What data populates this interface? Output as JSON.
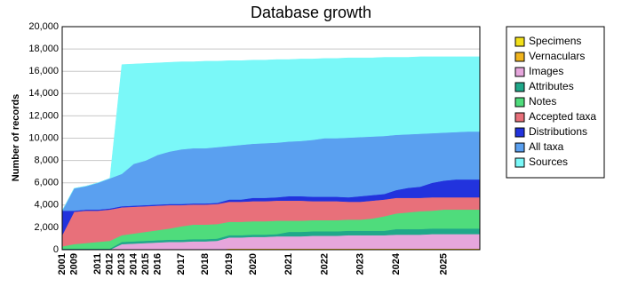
{
  "chart_data": {
    "type": "stacked_area",
    "title": "Database growth",
    "y_label": "Number of records",
    "categories": [
      "2001",
      "2009",
      null,
      "2011",
      "2012",
      "2013",
      "2014",
      "2015",
      "2016",
      null,
      "2017",
      null,
      "2018",
      null,
      "2019",
      null,
      "2020",
      null,
      null,
      "2021",
      null,
      null,
      "2022",
      null,
      null,
      "2023",
      null,
      null,
      "2024",
      null,
      null,
      null,
      "2025",
      null,
      null,
      null
    ],
    "ylim": [
      0,
      20000
    ],
    "yticks": [
      0,
      {
        "value": 2000,
        "label": "2,000"
      },
      {
        "value": 4000,
        "label": "4,000"
      },
      {
        "value": 6000,
        "label": "6,000"
      },
      {
        "value": 8000,
        "label": "8,000"
      },
      {
        "value": 10000,
        "label": "10,000"
      },
      {
        "value": 12000,
        "label": "12,000"
      },
      {
        "value": 14000,
        "label": "14,000"
      },
      {
        "value": 16000,
        "label": "16,000"
      },
      {
        "value": 18000,
        "label": "18,000"
      },
      {
        "value": 20000,
        "label": "20,000"
      }
    ],
    "grid": true,
    "legend": "right",
    "series": [
      {
        "name": "Specimens",
        "color": "#f2e01a",
        "values": [
          0,
          0,
          0,
          0,
          0,
          0,
          0,
          0,
          0,
          0,
          0,
          0,
          0,
          0,
          30,
          30,
          30,
          30,
          30,
          30,
          30,
          30,
          30,
          30,
          30,
          30,
          30,
          30,
          30,
          30,
          30,
          30,
          30,
          30,
          30,
          30
        ]
      },
      {
        "name": "Vernaculars",
        "color": "#f0b41e",
        "values": [
          0,
          0,
          0,
          0,
          0,
          0,
          0,
          0,
          0,
          0,
          0,
          0,
          0,
          0,
          70,
          70,
          70,
          70,
          70,
          70,
          70,
          70,
          70,
          70,
          70,
          70,
          70,
          70,
          70,
          70,
          70,
          70,
          70,
          70,
          70,
          70
        ]
      },
      {
        "name": "Images",
        "color": "#e6a6dc",
        "values": [
          0,
          0,
          0,
          0,
          0,
          500,
          550,
          600,
          650,
          700,
          700,
          750,
          750,
          800,
          1000,
          1000,
          1050,
          1050,
          1100,
          1100,
          1100,
          1150,
          1150,
          1150,
          1200,
          1200,
          1200,
          1200,
          1250,
          1250,
          1250,
          1300,
          1300,
          1300,
          1300,
          1300
        ]
      },
      {
        "name": "Attributes",
        "color": "#20a88a",
        "values": [
          100,
          100,
          100,
          100,
          100,
          200,
          200,
          200,
          200,
          200,
          200,
          200,
          200,
          200,
          200,
          200,
          200,
          200,
          200,
          400,
          400,
          400,
          400,
          400,
          400,
          400,
          400,
          400,
          500,
          500,
          500,
          500,
          500,
          500,
          500,
          500
        ]
      },
      {
        "name": "Notes",
        "color": "#4fdc7c",
        "values": [
          200,
          400,
          500,
          600,
          700,
          600,
          700,
          800,
          900,
          1000,
          1200,
          1300,
          1300,
          1300,
          1200,
          1200,
          1200,
          1200,
          1200,
          1000,
          1000,
          1000,
          1000,
          1000,
          1000,
          1000,
          1100,
          1300,
          1400,
          1500,
          1600,
          1600,
          1700,
          1700,
          1700,
          1700
        ]
      },
      {
        "name": "Accepted taxa",
        "color": "#e8707a",
        "values": [
          1000,
          2900,
          2900,
          2800,
          2800,
          2500,
          2400,
          2300,
          2200,
          2100,
          1900,
          1800,
          1800,
          1800,
          1800,
          1800,
          1800,
          1800,
          1800,
          1800,
          1800,
          1700,
          1700,
          1700,
          1600,
          1600,
          1600,
          1500,
          1400,
          1300,
          1200,
          1200,
          1100,
          1100,
          1100,
          1100
        ]
      },
      {
        "name": "Distributions",
        "color": "#2233dd",
        "values": [
          2200,
          100,
          100,
          100,
          100,
          100,
          100,
          100,
          100,
          100,
          100,
          100,
          100,
          100,
          200,
          200,
          300,
          300,
          300,
          400,
          400,
          400,
          400,
          400,
          400,
          500,
          500,
          500,
          700,
          900,
          1000,
          1300,
          1500,
          1600,
          1600,
          1600
        ]
      },
      {
        "name": "All taxa",
        "color": "#5aa0f0",
        "values": [
          0,
          2000,
          2100,
          2400,
          2700,
          2900,
          3750,
          4000,
          4450,
          4700,
          4900,
          4950,
          4950,
          5000,
          4800,
          4900,
          4850,
          4900,
          4900,
          4900,
          4950,
          5100,
          5250,
          5250,
          5350,
          5300,
          5250,
          5200,
          4950,
          4800,
          4750,
          4450,
          4300,
          4250,
          4300,
          4300
        ]
      },
      {
        "name": "Sources",
        "color": "#7af8f8",
        "values": [
          0,
          0,
          0,
          0,
          0,
          9800,
          8950,
          8700,
          8250,
          8000,
          7850,
          7750,
          7800,
          7700,
          7650,
          7550,
          7500,
          7450,
          7450,
          7350,
          7350,
          7250,
          7150,
          7150,
          7150,
          7100,
          7050,
          7050,
          6950,
          6900,
          6900,
          6850,
          6800,
          6750,
          6700,
          6700
        ]
      }
    ]
  }
}
